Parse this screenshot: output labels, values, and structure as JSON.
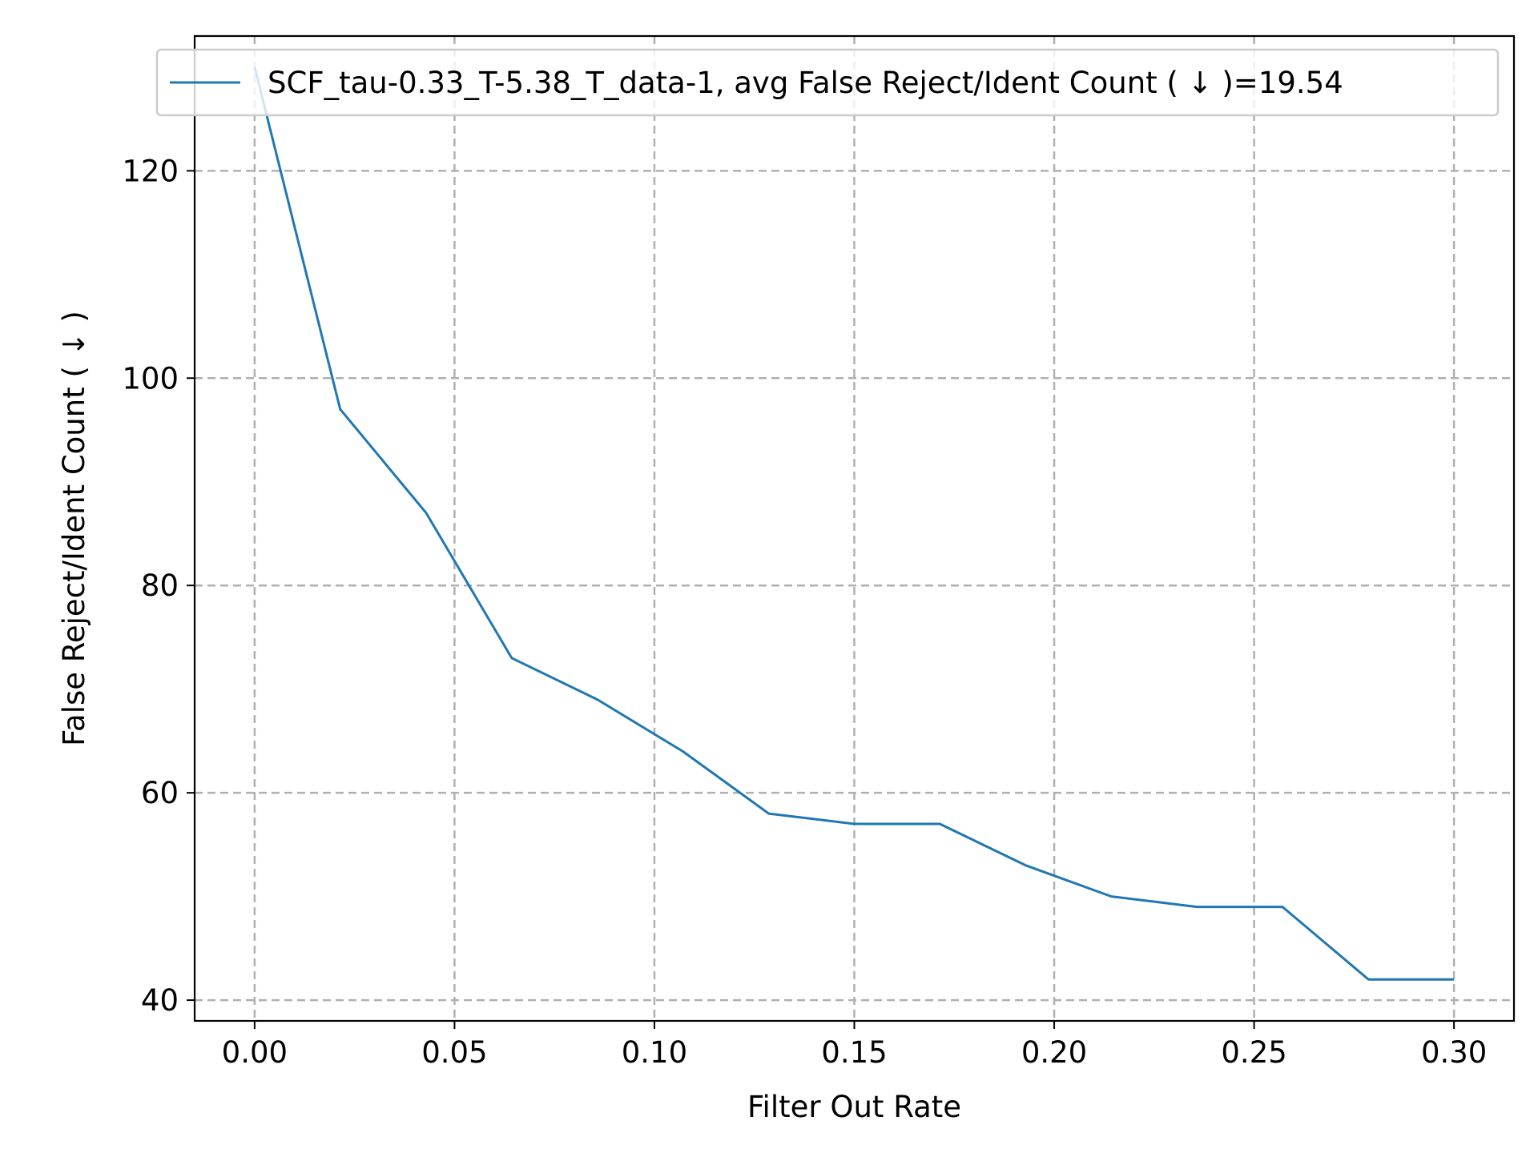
{
  "chart_data": {
    "type": "line",
    "title": "",
    "xlabel": "Filter Out Rate",
    "ylabel": "False Reject/Ident Count ( ↓ )",
    "xlim": [
      -0.015,
      0.315
    ],
    "ylim": [
      38,
      133
    ],
    "xticks": [
      0.0,
      0.05,
      0.1,
      0.15,
      0.2,
      0.25,
      0.3
    ],
    "xtick_labels": [
      "0.00",
      "0.05",
      "0.10",
      "0.15",
      "0.20",
      "0.25",
      "0.30"
    ],
    "yticks": [
      40,
      60,
      80,
      100,
      120
    ],
    "ytick_labels": [
      "40",
      "60",
      "80",
      "100",
      "120"
    ],
    "grid": true,
    "legend_position": "top-right",
    "series": [
      {
        "name": "SCF_tau-0.33_T-5.38_T_data-1, avg False Reject/Ident Count ( ↓ )=19.54",
        "color": "#1f77b4",
        "x": [
          0.0,
          0.0214,
          0.0429,
          0.0643,
          0.0857,
          0.1071,
          0.1286,
          0.15,
          0.1714,
          0.1929,
          0.2143,
          0.2357,
          0.2571,
          0.2786,
          0.3
        ],
        "y": [
          130,
          97,
          87,
          73,
          69,
          64,
          58,
          57,
          57,
          53,
          50,
          49,
          49,
          42,
          42
        ]
      }
    ]
  }
}
